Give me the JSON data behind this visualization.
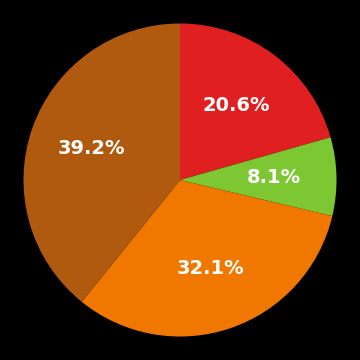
{
  "slices": [
    20.6,
    8.1,
    32.1,
    39.2
  ],
  "labels": [
    "20.6%",
    "8.1%",
    "32.1%",
    "39.2%"
  ],
  "colors": [
    "#e02020",
    "#7dc832",
    "#f07800",
    "#b05a10"
  ],
  "background_color": "#000000",
  "text_color": "#ffffff",
  "startangle": 90,
  "label_fontsize": 14,
  "label_fontweight": "bold",
  "label_r": 0.6,
  "figsize": [
    3.6,
    3.6
  ],
  "dpi": 100
}
